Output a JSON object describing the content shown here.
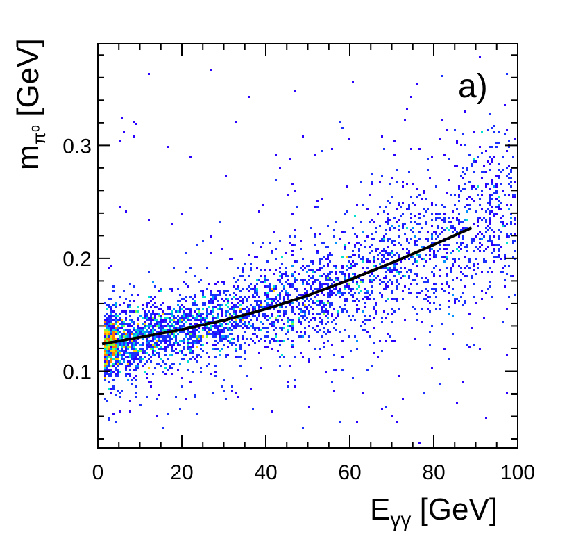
{
  "chart_data": {
    "type": "heatmap",
    "panel_label": "a)",
    "xlabel": {
      "main": "E",
      "sub": "γγ",
      "unit": " [GeV]"
    },
    "ylabel": {
      "main": "m",
      "sub": "π⁰",
      "unit": " [GeV]"
    },
    "xlim": [
      0,
      100
    ],
    "ylim": [
      0.032,
      0.39
    ],
    "x_ticks": [
      {
        "value": 0,
        "label": "0"
      },
      {
        "value": 20,
        "label": "20"
      },
      {
        "value": 40,
        "label": "40"
      },
      {
        "value": 60,
        "label": "60"
      },
      {
        "value": 80,
        "label": "80"
      },
      {
        "value": 100,
        "label": "100"
      }
    ],
    "y_ticks": [
      {
        "value": 0.1,
        "label": "0.1"
      },
      {
        "value": 0.2,
        "label": "0.2"
      },
      {
        "value": 0.3,
        "label": "0.3"
      }
    ],
    "grid": false,
    "colors": {
      "low": "#2a00ff",
      "mid_low": "#0090ff",
      "mid": "#00e0d0",
      "mid_high": "#7fff3f",
      "high": "#ffd000",
      "peak": "#ff7a00",
      "fit_line": "#000000"
    },
    "density_band": {
      "description_points": [
        {
          "x": 2,
          "y_center": 0.124,
          "y_width": 0.014
        },
        {
          "x": 10,
          "y_center": 0.13,
          "y_width": 0.014
        },
        {
          "x": 20,
          "y_center": 0.137,
          "y_width": 0.015
        },
        {
          "x": 30,
          "y_center": 0.145,
          "y_width": 0.016
        },
        {
          "x": 40,
          "y_center": 0.155,
          "y_width": 0.018
        },
        {
          "x": 50,
          "y_center": 0.167,
          "y_width": 0.02
        },
        {
          "x": 60,
          "y_center": 0.181,
          "y_width": 0.024
        },
        {
          "x": 70,
          "y_center": 0.196,
          "y_width": 0.028
        },
        {
          "x": 80,
          "y_center": 0.212,
          "y_width": 0.032
        },
        {
          "x": 90,
          "y_center": 0.228,
          "y_width": 0.036
        },
        {
          "x": 100,
          "y_center": 0.24,
          "y_width": 0.04
        }
      ],
      "peak_x_range": [
        15,
        35
      ]
    },
    "fit_curve": {
      "x": [
        1,
        10,
        20,
        30,
        40,
        50,
        60,
        70,
        80,
        89
      ],
      "y": [
        0.124,
        0.13,
        0.137,
        0.145,
        0.155,
        0.167,
        0.181,
        0.196,
        0.212,
        0.227
      ]
    }
  }
}
